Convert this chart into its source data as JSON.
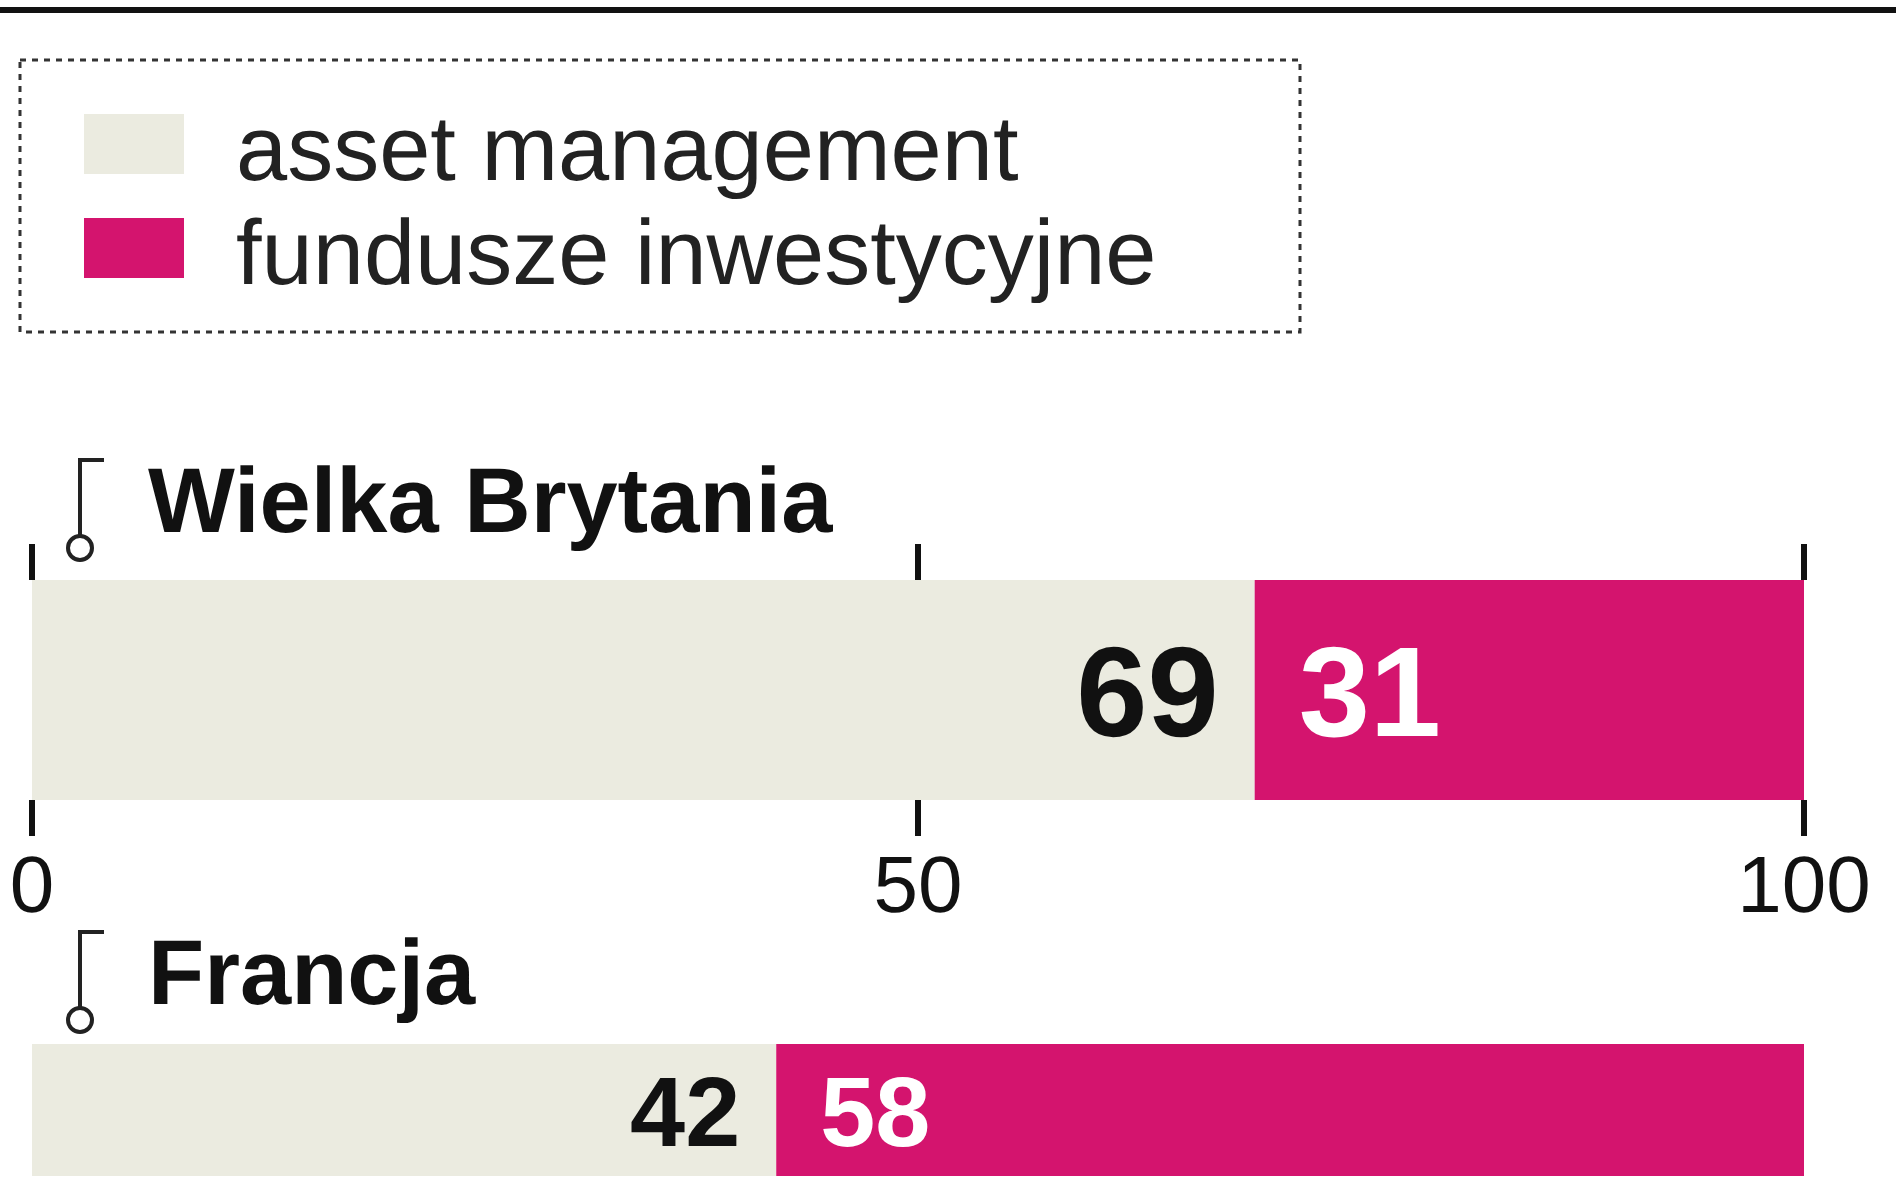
{
  "chart_data": {
    "type": "bar",
    "orientation": "horizontal",
    "stacked": true,
    "categories": [
      "Wielka Brytania",
      "Francja"
    ],
    "series": [
      {
        "name": "asset management",
        "color": "#ebebe0",
        "values": [
          69,
          42
        ]
      },
      {
        "name": "fundusze inwestycyjne",
        "color": "#d4146e",
        "values": [
          31,
          58
        ]
      }
    ],
    "xlim": [
      0,
      100
    ],
    "xticks": [
      0,
      50,
      100
    ],
    "data_labels": true,
    "legend": "top left"
  }
}
